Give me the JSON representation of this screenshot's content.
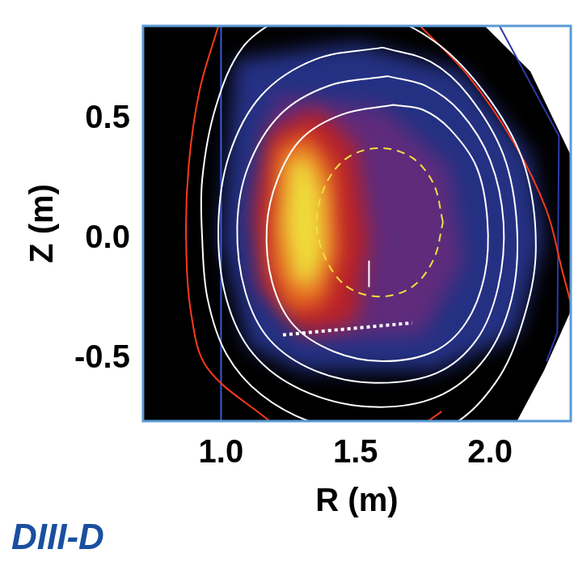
{
  "chart_data": {
    "type": "scatter",
    "x_label": "R (m)",
    "y_label": "Z (m)",
    "logo": "DIII-D",
    "xlim": [
      0.71,
      2.3
    ],
    "ylim": [
      -0.76,
      0.89
    ],
    "xticks": [
      {
        "value": 1,
        "label": "1.0"
      },
      1.5,
      {
        "value": 2,
        "label": "2.0"
      }
    ],
    "yticks": [
      -0.5,
      {
        "value": 0,
        "label": "0.0"
      },
      0.5
    ],
    "grid": false,
    "regions": [
      {
        "color": "#000000",
        "points": [
          [
            0.71,
            0.89
          ],
          [
            1.98,
            0.89
          ],
          [
            2.15,
            0.7
          ],
          [
            2.3,
            0.35
          ],
          [
            2.3,
            -0.3
          ],
          [
            2.2,
            -0.55
          ],
          [
            2.1,
            -0.76
          ],
          [
            0.71,
            -0.76
          ]
        ]
      },
      {
        "color": "#2a3a9a",
        "points": [
          [
            1.05,
            0.75
          ],
          [
            1.5,
            0.82
          ],
          [
            1.9,
            0.7
          ],
          [
            2.15,
            0.35
          ],
          [
            2.2,
            0.0
          ],
          [
            2.1,
            -0.4
          ],
          [
            1.8,
            -0.55
          ],
          [
            1.3,
            -0.55
          ],
          [
            1.1,
            -0.45
          ],
          [
            1.0,
            0.0
          ]
        ]
      },
      {
        "color": "#6a2a7a",
        "points": [
          [
            1.2,
            0.6
          ],
          [
            1.6,
            0.55
          ],
          [
            1.85,
            0.3
          ],
          [
            1.9,
            -0.1
          ],
          [
            1.75,
            -0.4
          ],
          [
            1.35,
            -0.42
          ],
          [
            1.15,
            -0.2
          ],
          [
            1.12,
            0.2
          ]
        ]
      },
      {
        "color": "#c8201a",
        "points": [
          [
            1.18,
            0.45
          ],
          [
            1.35,
            0.55
          ],
          [
            1.5,
            0.4
          ],
          [
            1.55,
            0.0
          ],
          [
            1.5,
            -0.35
          ],
          [
            1.3,
            -0.4
          ],
          [
            1.15,
            -0.2
          ],
          [
            1.12,
            0.1
          ]
        ]
      },
      {
        "color": "#f07820",
        "points": [
          [
            1.2,
            0.38
          ],
          [
            1.32,
            0.45
          ],
          [
            1.42,
            0.3
          ],
          [
            1.44,
            -0.05
          ],
          [
            1.38,
            -0.28
          ],
          [
            1.25,
            -0.3
          ],
          [
            1.18,
            -0.1
          ]
        ]
      },
      {
        "color": "#f0f040",
        "points": [
          [
            1.25,
            0.32
          ],
          [
            1.32,
            0.36
          ],
          [
            1.38,
            0.2
          ],
          [
            1.39,
            -0.05
          ],
          [
            1.34,
            -0.2
          ],
          [
            1.27,
            -0.18
          ],
          [
            1.23,
            0.05
          ]
        ]
      }
    ],
    "series": [
      {
        "color": "#ffffff",
        "line_style": "solid",
        "points": [
          [
            1.25,
            0.95
          ],
          [
            1.08,
            0.8
          ],
          [
            0.98,
            0.55
          ],
          [
            0.93,
            0.25
          ],
          [
            0.93,
            0.0
          ],
          [
            0.95,
            -0.25
          ],
          [
            1.02,
            -0.48
          ],
          [
            1.15,
            -0.65
          ],
          [
            1.35,
            -0.77
          ],
          [
            1.6,
            -0.82
          ],
          [
            1.85,
            -0.78
          ],
          [
            2.02,
            -0.6
          ],
          [
            2.12,
            -0.35
          ],
          [
            2.17,
            -0.05
          ],
          [
            2.13,
            0.3
          ],
          [
            2.0,
            0.58
          ],
          [
            1.8,
            0.82
          ],
          [
            1.55,
            0.95
          ],
          [
            1.25,
            0.95
          ]
        ]
      },
      {
        "color": "#ffffff",
        "line_style": "solid",
        "points": [
          [
            1.6,
            0.8
          ],
          [
            1.35,
            0.75
          ],
          [
            1.15,
            0.6
          ],
          [
            1.03,
            0.35
          ],
          [
            0.99,
            0.05
          ],
          [
            1.02,
            -0.25
          ],
          [
            1.12,
            -0.48
          ],
          [
            1.3,
            -0.63
          ],
          [
            1.55,
            -0.7
          ],
          [
            1.8,
            -0.66
          ],
          [
            1.98,
            -0.5
          ],
          [
            2.08,
            -0.25
          ],
          [
            2.1,
            0.05
          ],
          [
            2.05,
            0.35
          ],
          [
            1.92,
            0.6
          ],
          [
            1.78,
            0.74
          ],
          [
            1.6,
            0.8
          ]
        ]
      },
      {
        "color": "#ffffff",
        "line_style": "solid",
        "points": [
          [
            1.62,
            0.68
          ],
          [
            1.4,
            0.64
          ],
          [
            1.22,
            0.52
          ],
          [
            1.1,
            0.3
          ],
          [
            1.06,
            0.05
          ],
          [
            1.09,
            -0.22
          ],
          [
            1.18,
            -0.42
          ],
          [
            1.35,
            -0.55
          ],
          [
            1.57,
            -0.6
          ],
          [
            1.8,
            -0.56
          ],
          [
            1.95,
            -0.42
          ],
          [
            2.03,
            -0.2
          ],
          [
            2.05,
            0.07
          ],
          [
            2.0,
            0.33
          ],
          [
            1.89,
            0.53
          ],
          [
            1.76,
            0.64
          ],
          [
            1.62,
            0.68
          ]
        ]
      },
      {
        "color": "#ffffff",
        "line_style": "solid",
        "points": [
          [
            1.64,
            0.56
          ],
          [
            1.45,
            0.52
          ],
          [
            1.3,
            0.42
          ],
          [
            1.21,
            0.25
          ],
          [
            1.17,
            0.05
          ],
          [
            1.19,
            -0.18
          ],
          [
            1.27,
            -0.36
          ],
          [
            1.42,
            -0.47
          ],
          [
            1.6,
            -0.51
          ],
          [
            1.79,
            -0.47
          ],
          [
            1.91,
            -0.35
          ],
          [
            1.98,
            -0.15
          ],
          [
            1.99,
            0.08
          ],
          [
            1.95,
            0.3
          ],
          [
            1.85,
            0.46
          ],
          [
            1.75,
            0.54
          ],
          [
            1.64,
            0.56
          ]
        ]
      },
      {
        "color": "#ffffff",
        "line_style": "solid",
        "points": [
          [
            1.55,
            -0.09
          ],
          [
            1.55,
            -0.2
          ]
        ]
      },
      {
        "color": "#ff3a1a",
        "line_style": "solid",
        "points": [
          [
            0.99,
            0.89
          ],
          [
            0.92,
            0.62
          ],
          [
            0.88,
            0.31
          ],
          [
            0.87,
            0.0
          ],
          [
            0.89,
            -0.32
          ],
          [
            0.95,
            -0.54
          ],
          [
            1.18,
            -0.76
          ]
        ]
      },
      {
        "color": "#ff3a1a",
        "line_style": "solid",
        "points": [
          [
            1.74,
            0.89
          ],
          [
            1.92,
            0.68
          ],
          [
            2.09,
            0.4
          ],
          [
            2.21,
            0.12
          ],
          [
            2.27,
            -0.14
          ],
          [
            2.33,
            -0.39
          ]
        ]
      },
      {
        "color": "#ff3a1a",
        "line_style": "solid",
        "points": [
          [
            1.77,
            -0.76
          ],
          [
            1.82,
            -0.72
          ]
        ]
      },
      {
        "color": "#3a5bd9",
        "line_style": "solid",
        "points": [
          [
            1.0,
            0.89
          ],
          [
            1.0,
            -0.76
          ]
        ]
      },
      {
        "color": "#2b3aa8",
        "line_style": "solid",
        "points": [
          [
            2.035,
            0.89
          ],
          [
            2.256,
            0.43
          ],
          [
            2.25,
            -0.39
          ],
          [
            2.21,
            -0.51
          ]
        ]
      },
      {
        "color": "#f0e040",
        "line_style": "dashed",
        "points": [
          [
            1.825,
            0.07
          ],
          [
            1.79,
            0.23
          ],
          [
            1.71,
            0.34
          ],
          [
            1.59,
            0.38
          ],
          [
            1.47,
            0.34
          ],
          [
            1.39,
            0.23
          ],
          [
            1.355,
            0.07
          ],
          [
            1.39,
            -0.085
          ],
          [
            1.47,
            -0.2
          ],
          [
            1.59,
            -0.24
          ],
          [
            1.71,
            -0.2
          ],
          [
            1.79,
            -0.085
          ],
          [
            1.825,
            0.07
          ]
        ]
      },
      {
        "color": "#ffffff",
        "line_style": "dotted",
        "points": [
          [
            1.23,
            -0.4
          ],
          [
            1.71,
            -0.35
          ]
        ]
      }
    ]
  }
}
